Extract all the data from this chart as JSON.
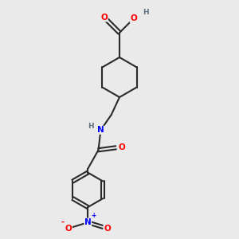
{
  "background_color": "#eaeaea",
  "bond_color": "#2a2a2a",
  "bond_width": 1.5,
  "atom_colors": {
    "O": "#ff0000",
    "N": "#0000ff",
    "H": "#607080",
    "C": "#2a2a2a"
  },
  "font_size_atoms": 7.5,
  "fig_width": 3.0,
  "fig_height": 3.0,
  "dpi": 100,
  "xlim": [
    0,
    10
  ],
  "ylim": [
    0,
    10
  ]
}
